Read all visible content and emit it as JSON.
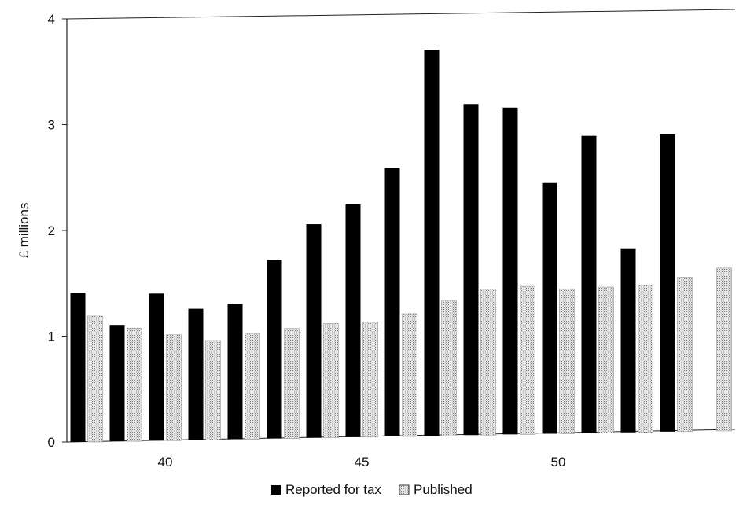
{
  "chart_data": {
    "type": "bar",
    "title": "",
    "xlabel": "",
    "ylabel": "£ millions",
    "ylim": [
      0,
      4
    ],
    "yticks": [
      0,
      1,
      2,
      3,
      4
    ],
    "x": [
      38,
      39,
      40,
      41,
      42,
      43,
      44,
      45,
      46,
      47,
      48,
      49,
      50,
      51,
      52,
      53,
      54
    ],
    "xtick_labels": [
      {
        "x": 40,
        "label": "40"
      },
      {
        "x": 45,
        "label": "45"
      },
      {
        "x": 50,
        "label": "50"
      }
    ],
    "series": [
      {
        "name": "Reported for tax",
        "color": "#000000",
        "values": [
          1.41,
          1.1,
          1.39,
          1.24,
          1.28,
          1.69,
          2.02,
          2.2,
          2.54,
          3.65,
          3.13,
          3.09,
          2.37,
          2.81,
          1.74,
          2.81,
          null
        ]
      },
      {
        "name": "Published",
        "color": "#d9d9d9",
        "values": [
          1.19,
          1.07,
          1.0,
          0.94,
          1.0,
          1.04,
          1.08,
          1.09,
          1.16,
          1.28,
          1.38,
          1.4,
          1.37,
          1.38,
          1.39,
          1.46,
          1.54
        ]
      }
    ],
    "legend_position": "bottom",
    "grid": false
  }
}
